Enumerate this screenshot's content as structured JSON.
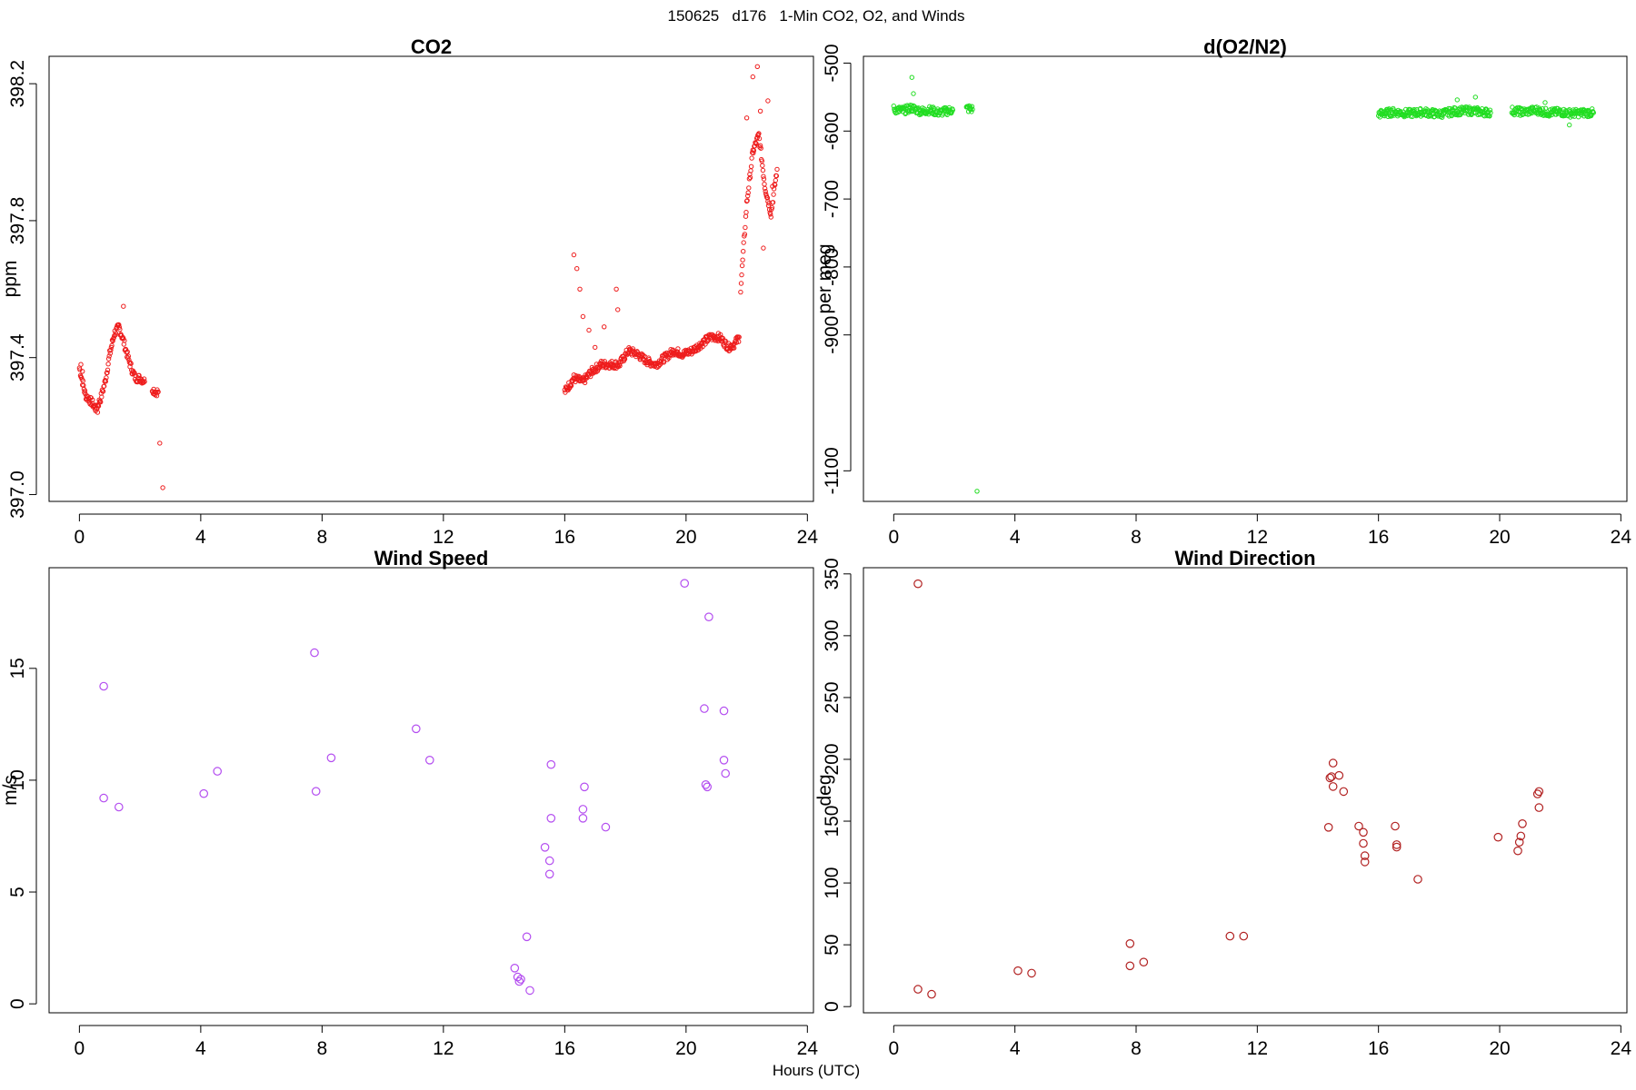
{
  "figure": {
    "suptitle": "150625   d176   1-Min CO2, O2, and Winds",
    "xlabel": "Hours (UTC)"
  },
  "chart_data": [
    {
      "type": "scatter",
      "title": "CO2",
      "xlabel": "",
      "ylabel": "ppm",
      "xlim": [
        -1,
        24.2
      ],
      "ylim": [
        396.98,
        398.28
      ],
      "xticks": [
        0,
        4,
        8,
        12,
        16,
        20,
        24
      ],
      "yticks": [
        397.0,
        397.4,
        397.8,
        398.2
      ],
      "ytick_labels": [
        "397.0",
        "397.4",
        "397.8",
        "398.2"
      ],
      "marker": "small-open-circle",
      "color": "#ee1c1c",
      "grid": false,
      "segments": [
        {
          "x": [
            0.0,
            0.2,
            0.4,
            0.55,
            0.7,
            0.85,
            1.0,
            1.15,
            1.3,
            1.45,
            1.6,
            1.75,
            1.85,
            2.0,
            2.15
          ],
          "y": [
            397.37,
            397.29,
            397.27,
            397.25,
            397.28,
            397.33,
            397.41,
            397.47,
            397.49,
            397.45,
            397.4,
            397.36,
            397.34,
            397.34,
            397.33
          ]
        },
        {
          "x": [
            2.4,
            2.5,
            2.6
          ],
          "y": [
            397.31,
            397.3,
            397.3
          ]
        },
        {
          "x": [
            16.0,
            16.3,
            16.6,
            16.9,
            17.2,
            17.5,
            17.8,
            18.1,
            18.4,
            18.7,
            19.0,
            19.3,
            19.6,
            19.9,
            20.2,
            20.5,
            20.8,
            21.1,
            21.4,
            21.6,
            21.75
          ],
          "y": [
            397.3,
            397.34,
            397.33,
            397.36,
            397.38,
            397.38,
            397.38,
            397.42,
            397.41,
            397.39,
            397.38,
            397.4,
            397.42,
            397.41,
            397.42,
            397.44,
            397.46,
            397.46,
            397.43,
            397.44,
            397.46
          ]
        },
        {
          "x": [
            21.8,
            22.0,
            22.2,
            22.4,
            22.6,
            22.8,
            23.0
          ],
          "y": [
            397.6,
            397.85,
            398.0,
            398.05,
            397.9,
            397.82,
            397.95
          ]
        }
      ],
      "scatter": {
        "x": [
          0.05,
          0.1,
          0.6,
          1.45,
          2.65,
          2.75,
          16.3,
          16.4,
          16.5,
          16.6,
          16.8,
          17.0,
          17.3,
          17.7,
          17.75,
          22.0,
          22.2,
          22.35,
          22.45,
          22.55,
          22.7,
          22.85
        ],
        "y": [
          397.38,
          397.36,
          397.24,
          397.55,
          397.15,
          397.02,
          397.7,
          397.66,
          397.6,
          397.52,
          397.48,
          397.43,
          397.49,
          397.6,
          397.54,
          398.1,
          398.22,
          398.25,
          398.12,
          397.72,
          398.15,
          397.9
        ]
      }
    },
    {
      "type": "scatter",
      "title": "d(O2/N2)",
      "xlabel": "",
      "ylabel": "per meg",
      "xlim": [
        -1,
        24.2
      ],
      "ylim": [
        -1145,
        -490
      ],
      "xticks": [
        0,
        4,
        8,
        12,
        16,
        20,
        24
      ],
      "yticks": [
        -500,
        -600,
        -700,
        -800,
        -900,
        -1100
      ],
      "ytick_labels": [
        "-500",
        "-600",
        "-700",
        "-800",
        "-900",
        "-1100"
      ],
      "marker": "small-open-circle",
      "color": "#22dd22",
      "grid": false,
      "segments": [
        {
          "x": [
            0.0,
            0.3,
            0.6,
            0.9,
            1.2,
            1.5,
            1.8,
            1.95
          ],
          "y": [
            -568,
            -570,
            -566,
            -571,
            -569,
            -573,
            -570,
            -569
          ]
        },
        {
          "x": [
            2.4,
            2.5,
            2.6
          ],
          "y": [
            -567,
            -567,
            -568
          ]
        },
        {
          "x": [
            16.0,
            16.5,
            17.0,
            17.5,
            18.0,
            18.5,
            19.0,
            19.5,
            19.7
          ],
          "y": [
            -575,
            -572,
            -574,
            -572,
            -575,
            -571,
            -570,
            -572,
            -573
          ]
        },
        {
          "x": [
            20.4,
            20.8,
            21.2,
            21.6,
            22.0,
            22.4,
            22.8,
            23.1
          ],
          "y": [
            -570,
            -572,
            -569,
            -573,
            -572,
            -574,
            -573,
            -573
          ]
        }
      ],
      "scatter": {
        "x": [
          0.6,
          0.65,
          2.75,
          18.6,
          19.2,
          21.5,
          22.3
        ],
        "y": [
          -521,
          -545,
          -1130,
          -554,
          -550,
          -558,
          -591
        ]
      }
    },
    {
      "type": "scatter",
      "title": "Wind Speed",
      "xlabel": "",
      "ylabel": "m/s",
      "xlim": [
        -1,
        24.2
      ],
      "ylim": [
        -0.4,
        19.5
      ],
      "xticks": [
        0,
        4,
        8,
        12,
        16,
        20,
        24
      ],
      "yticks": [
        0,
        5,
        10,
        15
      ],
      "ytick_labels": [
        "0",
        "5",
        "10",
        "15"
      ],
      "marker": "open-circle",
      "color": "#b44ef0",
      "grid": false,
      "x": [
        0.8,
        0.8,
        1.3,
        4.1,
        4.55,
        7.75,
        7.8,
        8.3,
        11.1,
        11.55,
        14.35,
        14.45,
        14.5,
        14.55,
        14.75,
        14.85,
        15.35,
        15.5,
        15.5,
        15.55,
        15.55,
        16.6,
        16.6,
        16.65,
        17.35,
        19.95,
        20.6,
        20.65,
        20.7,
        20.75,
        21.25,
        21.25,
        21.3
      ],
      "y": [
        14.2,
        9.2,
        8.8,
        9.4,
        10.4,
        15.7,
        9.5,
        11.0,
        12.3,
        10.9,
        1.6,
        1.2,
        1.0,
        1.1,
        3.0,
        0.6,
        7.0,
        5.8,
        6.4,
        8.3,
        10.7,
        8.3,
        8.7,
        9.7,
        7.9,
        18.8,
        13.2,
        9.8,
        9.7,
        17.3,
        13.1,
        10.9,
        10.3
      ]
    },
    {
      "type": "scatter",
      "title": "Wind Direction",
      "xlabel": "",
      "ylabel": "deg",
      "xlim": [
        -1,
        24.2
      ],
      "ylim": [
        -5,
        355
      ],
      "xticks": [
        0,
        4,
        8,
        12,
        16,
        20,
        24
      ],
      "yticks": [
        0,
        50,
        100,
        150,
        200,
        250,
        300,
        350
      ],
      "ytick_labels": [
        "0",
        "50",
        "100",
        "150",
        "200",
        "250",
        "300",
        "350"
      ],
      "marker": "open-circle",
      "color": "#b22222",
      "grid": false,
      "x": [
        0.8,
        0.8,
        1.25,
        4.1,
        4.55,
        7.8,
        7.8,
        8.25,
        11.1,
        11.55,
        14.35,
        14.4,
        14.45,
        14.5,
        14.5,
        14.7,
        14.85,
        15.35,
        15.5,
        15.5,
        15.55,
        15.55,
        16.55,
        16.6,
        16.6,
        17.3,
        19.95,
        20.6,
        20.65,
        20.7,
        20.75,
        21.25,
        21.3,
        21.3
      ],
      "y": [
        342,
        14,
        10,
        29,
        27,
        51,
        33,
        36,
        57,
        57,
        145,
        185,
        186,
        178,
        197,
        187,
        174,
        146,
        141,
        132,
        122,
        117,
        146,
        131,
        129,
        103,
        137,
        126,
        133,
        138,
        148,
        172,
        174,
        161
      ]
    }
  ]
}
